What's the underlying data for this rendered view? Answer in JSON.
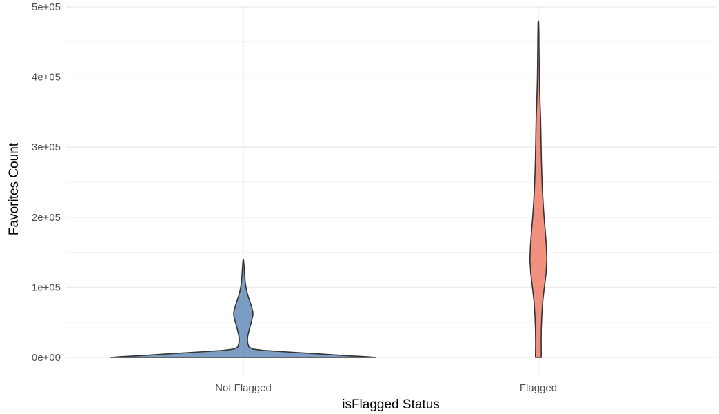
{
  "chart_data": {
    "type": "violin",
    "xlabel": "isFlagged Status",
    "ylabel": "Favorites Count",
    "ylim": [
      0,
      500000
    ],
    "yticks": [
      0,
      100000,
      200000,
      300000,
      400000,
      500000
    ],
    "ytick_labels": [
      "0e+00",
      "1e+05",
      "2e+05",
      "3e+05",
      "4e+05",
      "5e+05"
    ],
    "categories": [
      "Not Flagged",
      "Flagged"
    ],
    "grid": true,
    "legend": "none",
    "series": [
      {
        "category": "Not Flagged",
        "color": "#4f7cb0",
        "opacity": 0.75,
        "y_min": 0,
        "y_max": 140000,
        "profile": [
          [
            0,
            1.0
          ],
          [
            1000,
            0.93
          ],
          [
            2500,
            0.78
          ],
          [
            5000,
            0.58
          ],
          [
            8000,
            0.32
          ],
          [
            10000,
            0.15
          ],
          [
            12000,
            0.07
          ],
          [
            15000,
            0.042
          ],
          [
            20000,
            0.034
          ],
          [
            25000,
            0.031
          ],
          [
            30000,
            0.033
          ],
          [
            40000,
            0.045
          ],
          [
            50000,
            0.06
          ],
          [
            60000,
            0.0725
          ],
          [
            65000,
            0.072
          ],
          [
            75000,
            0.058
          ],
          [
            85000,
            0.04
          ],
          [
            95000,
            0.025
          ],
          [
            105000,
            0.016
          ],
          [
            115000,
            0.011
          ],
          [
            125000,
            0.0075
          ],
          [
            135000,
            0.004
          ],
          [
            139000,
            0.0015
          ],
          [
            140000,
            0
          ]
        ]
      },
      {
        "category": "Flagged",
        "color": "#f07d6a",
        "opacity": 0.85,
        "y_min": 0,
        "y_max": 480000,
        "profile": [
          [
            0,
            0.022
          ],
          [
            20000,
            0.021
          ],
          [
            40000,
            0.022
          ],
          [
            60000,
            0.026
          ],
          [
            80000,
            0.033
          ],
          [
            100000,
            0.045
          ],
          [
            120000,
            0.058
          ],
          [
            140000,
            0.064
          ],
          [
            160000,
            0.06
          ],
          [
            180000,
            0.052
          ],
          [
            200000,
            0.043
          ],
          [
            220000,
            0.036
          ],
          [
            240000,
            0.03
          ],
          [
            260000,
            0.026
          ],
          [
            280000,
            0.023
          ],
          [
            300000,
            0.021
          ],
          [
            320000,
            0.019
          ],
          [
            340000,
            0.017
          ],
          [
            360000,
            0.013
          ],
          [
            380000,
            0.01
          ],
          [
            400000,
            0.0075
          ],
          [
            430000,
            0.0055
          ],
          [
            460000,
            0.0042
          ],
          [
            478000,
            0.0025
          ],
          [
            480000,
            0
          ]
        ]
      }
    ]
  }
}
